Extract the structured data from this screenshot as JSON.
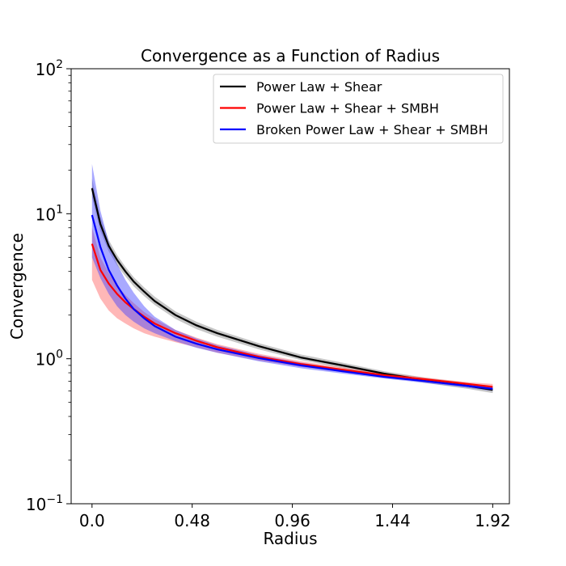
{
  "chart_data": {
    "type": "line",
    "title": "Convergence as a Function of Radius",
    "xlabel": "Radius",
    "ylabel": "Convergence",
    "yscale": "log",
    "xlim": [
      -0.1,
      2.0
    ],
    "ylim": [
      0.1,
      100
    ],
    "xticks": [
      0.0,
      0.48,
      0.96,
      1.44,
      1.92
    ],
    "xtick_labels": [
      "0.0",
      "0.48",
      "0.96",
      "1.44",
      "1.92"
    ],
    "yticks": [
      0.1,
      1,
      10,
      100
    ],
    "ytick_labels": [
      {
        "base": "10",
        "exp": "−1"
      },
      {
        "base": "10",
        "exp": "0"
      },
      {
        "base": "10",
        "exp": "1"
      },
      {
        "base": "10",
        "exp": "2"
      }
    ],
    "grid": false,
    "legend_position": "top-right",
    "x": [
      0.0,
      0.04,
      0.08,
      0.12,
      0.16,
      0.2,
      0.25,
      0.3,
      0.4,
      0.5,
      0.6,
      0.8,
      1.0,
      1.2,
      1.4,
      1.6,
      1.8,
      1.92
    ],
    "series": [
      {
        "name": "Power Law + Shear",
        "color": "#000000",
        "band_color": "#808080",
        "values": [
          15.0,
          8.5,
          6.0,
          4.8,
          4.0,
          3.4,
          2.9,
          2.5,
          2.0,
          1.7,
          1.5,
          1.22,
          1.02,
          0.9,
          0.79,
          0.71,
          0.65,
          0.61
        ],
        "lower": [
          13.0,
          7.6,
          5.5,
          4.4,
          3.7,
          3.15,
          2.7,
          2.35,
          1.88,
          1.6,
          1.42,
          1.16,
          0.98,
          0.86,
          0.76,
          0.68,
          0.62,
          0.58
        ],
        "upper": [
          17.5,
          9.5,
          6.6,
          5.2,
          4.3,
          3.65,
          3.1,
          2.68,
          2.12,
          1.8,
          1.58,
          1.28,
          1.07,
          0.94,
          0.82,
          0.74,
          0.68,
          0.64
        ]
      },
      {
        "name": "Power Law + Shear + SMBH",
        "color": "#ff0000",
        "band_color": "#ff6060",
        "values": [
          6.2,
          4.1,
          3.3,
          2.8,
          2.45,
          2.2,
          1.95,
          1.75,
          1.5,
          1.33,
          1.2,
          1.03,
          0.92,
          0.84,
          0.77,
          0.72,
          0.67,
          0.64
        ],
        "lower": [
          3.5,
          2.6,
          2.15,
          1.9,
          1.75,
          1.62,
          1.5,
          1.42,
          1.3,
          1.2,
          1.1,
          0.97,
          0.88,
          0.81,
          0.75,
          0.71,
          0.66,
          0.63
        ],
        "upper": [
          8.0,
          5.0,
          3.9,
          3.2,
          2.75,
          2.42,
          2.1,
          1.88,
          1.58,
          1.4,
          1.26,
          1.08,
          0.96,
          0.87,
          0.8,
          0.74,
          0.69,
          0.67
        ]
      },
      {
        "name": "Broken Power Law + Shear + SMBH",
        "color": "#0000ff",
        "band_color": "#4040ff",
        "values": [
          9.8,
          5.9,
          4.1,
          3.2,
          2.6,
          2.2,
          1.9,
          1.68,
          1.42,
          1.27,
          1.16,
          1.01,
          0.9,
          0.82,
          0.75,
          0.7,
          0.65,
          0.62
        ],
        "lower": [
          5.0,
          3.6,
          2.8,
          2.3,
          2.0,
          1.8,
          1.62,
          1.5,
          1.32,
          1.19,
          1.1,
          0.96,
          0.86,
          0.79,
          0.73,
          0.68,
          0.63,
          0.6
        ],
        "upper": [
          22.0,
          10.5,
          6.4,
          4.5,
          3.5,
          2.85,
          2.3,
          1.95,
          1.58,
          1.38,
          1.24,
          1.06,
          0.94,
          0.85,
          0.78,
          0.72,
          0.67,
          0.64
        ]
      }
    ]
  }
}
